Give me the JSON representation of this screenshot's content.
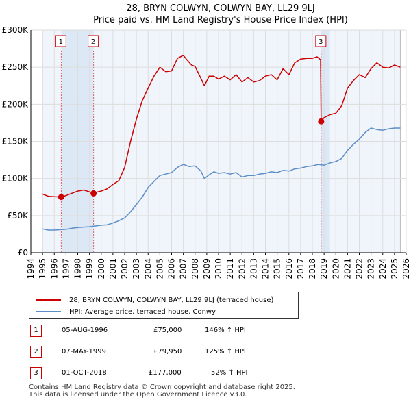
{
  "chart_data": {
    "type": "line",
    "title": "28, BRYN COLWYN, COLWYN BAY, LL29 9LJ",
    "subtitle": "Price paid vs. HM Land Registry's House Price Index (HPI)",
    "xlim": [
      1994,
      2026
    ],
    "ylim": [
      0,
      300000
    ],
    "x_ticks": [
      1994,
      1995,
      1996,
      1997,
      1998,
      1999,
      2000,
      2001,
      2002,
      2003,
      2004,
      2005,
      2006,
      2007,
      2008,
      2009,
      2010,
      2011,
      2012,
      2013,
      2014,
      2015,
      2016,
      2017,
      2018,
      2019,
      2020,
      2021,
      2022,
      2023,
      2024,
      2025,
      2026
    ],
    "y_ticks": [
      {
        "value": 0,
        "label": "£0"
      },
      {
        "value": 50000,
        "label": "£50K"
      },
      {
        "value": 100000,
        "label": "£100K"
      },
      {
        "value": 150000,
        "label": "£150K"
      },
      {
        "value": 200000,
        "label": "£200K"
      },
      {
        "value": 250000,
        "label": "£250K"
      },
      {
        "value": 300000,
        "label": "£300K"
      }
    ],
    "data_range": [
      1995.0,
      2025.5
    ],
    "shaded_spans": [
      [
        1996.59,
        1999.35
      ],
      [
        2018.75,
        2019.5
      ]
    ],
    "series": [
      {
        "name": "28, BRYN COLWYN, COLWYN BAY, LL29 9LJ (terraced house)",
        "color": "#cc0000",
        "x": [
          1995.0,
          1995.5,
          1996.0,
          1996.59,
          1997.0,
          1997.5,
          1998.0,
          1998.5,
          1999.0,
          1999.35,
          1999.7,
          2000.0,
          2000.5,
          2001.0,
          2001.5,
          2002.0,
          2002.5,
          2003.0,
          2003.5,
          2004.0,
          2004.5,
          2005.0,
          2005.5,
          2006.0,
          2006.5,
          2007.0,
          2007.3,
          2007.7,
          2008.0,
          2008.5,
          2008.8,
          2009.2,
          2009.6,
          2010.0,
          2010.5,
          2011.0,
          2011.5,
          2012.0,
          2012.5,
          2013.0,
          2013.5,
          2014.0,
          2014.5,
          2015.0,
          2015.5,
          2016.0,
          2016.5,
          2017.0,
          2017.5,
          2018.0,
          2018.4,
          2018.7,
          2018.75,
          2019.0,
          2019.5,
          2020.0,
          2020.5,
          2021.0,
          2021.5,
          2022.0,
          2022.5,
          2023.0,
          2023.5,
          2024.0,
          2024.5,
          2025.0,
          2025.5
        ],
        "y": [
          79000,
          76000,
          75500,
          75000,
          77000,
          80000,
          83000,
          84500,
          82000,
          79950,
          82000,
          83000,
          86000,
          92000,
          97000,
          115000,
          150000,
          180000,
          205000,
          222000,
          238000,
          250000,
          244000,
          245000,
          262000,
          266000,
          260000,
          253000,
          251000,
          235000,
          225000,
          238000,
          238000,
          234000,
          238000,
          233000,
          240000,
          230000,
          236000,
          230000,
          232000,
          238000,
          240000,
          233000,
          248000,
          240000,
          256000,
          261000,
          262000,
          262000,
          264000,
          260000,
          177000,
          182000,
          186000,
          188000,
          198000,
          222000,
          232000,
          240000,
          236000,
          248000,
          256000,
          250000,
          249000,
          253000,
          250000
        ]
      },
      {
        "name": "HPI: Average price, terraced house, Conwy",
        "color": "#5b8ec8",
        "x": [
          1995.0,
          1995.5,
          1996.0,
          1996.5,
          1997.0,
          1997.5,
          1998.0,
          1998.5,
          1999.0,
          1999.5,
          2000.0,
          2000.5,
          2001.0,
          2001.5,
          2002.0,
          2002.5,
          2003.0,
          2003.5,
          2004.0,
          2004.5,
          2005.0,
          2005.5,
          2006.0,
          2006.5,
          2007.0,
          2007.5,
          2008.0,
          2008.5,
          2008.8,
          2009.2,
          2009.6,
          2010.0,
          2010.5,
          2011.0,
          2011.5,
          2012.0,
          2012.5,
          2013.0,
          2013.5,
          2014.0,
          2014.5,
          2015.0,
          2015.5,
          2016.0,
          2016.5,
          2017.0,
          2017.5,
          2018.0,
          2018.5,
          2019.0,
          2019.5,
          2020.0,
          2020.5,
          2021.0,
          2021.5,
          2022.0,
          2022.5,
          2023.0,
          2023.5,
          2024.0,
          2024.5,
          2025.0,
          2025.5
        ],
        "y": [
          32000,
          30500,
          30500,
          31000,
          31500,
          33000,
          34000,
          34500,
          35000,
          36000,
          37000,
          37500,
          40000,
          43000,
          47000,
          55000,
          65000,
          75000,
          88000,
          96000,
          104000,
          106000,
          108000,
          115000,
          119000,
          116000,
          117000,
          110000,
          100000,
          105000,
          109000,
          107000,
          108000,
          106000,
          108000,
          102000,
          104000,
          104000,
          106000,
          107000,
          109000,
          108000,
          111000,
          110000,
          113000,
          114000,
          116000,
          117000,
          119000,
          118000,
          121000,
          123000,
          127000,
          138000,
          146000,
          153000,
          162000,
          168000,
          166000,
          165000,
          167000,
          168000,
          168000
        ]
      }
    ],
    "sales": [
      {
        "label": "1",
        "x": 1996.59,
        "y": 75000
      },
      {
        "label": "2",
        "x": 1999.35,
        "y": 79950
      },
      {
        "label": "3",
        "x": 2018.75,
        "y": 177000
      }
    ]
  },
  "legend": {
    "property": "28, BRYN COLWYN, COLWYN BAY, LL29 9LJ (terraced house)",
    "hpi": "HPI: Average price, terraced house, Conwy"
  },
  "colors": {
    "property": "#cc0000",
    "hpi": "#5b8ec8",
    "shade": "#dde8f6"
  },
  "sales_table": [
    {
      "num": "1",
      "date": "05-AUG-1996",
      "price": "£75,000",
      "hpi": "146% ↑ HPI"
    },
    {
      "num": "2",
      "date": "07-MAY-1999",
      "price": "£79,950",
      "hpi": "125% ↑ HPI"
    },
    {
      "num": "3",
      "date": "01-OCT-2018",
      "price": "£177,000",
      "hpi": "52% ↑ HPI"
    }
  ],
  "footer": {
    "line1": "Contains HM Land Registry data © Crown copyright and database right 2025.",
    "line2": "This data is licensed under the Open Government Licence v3.0."
  }
}
